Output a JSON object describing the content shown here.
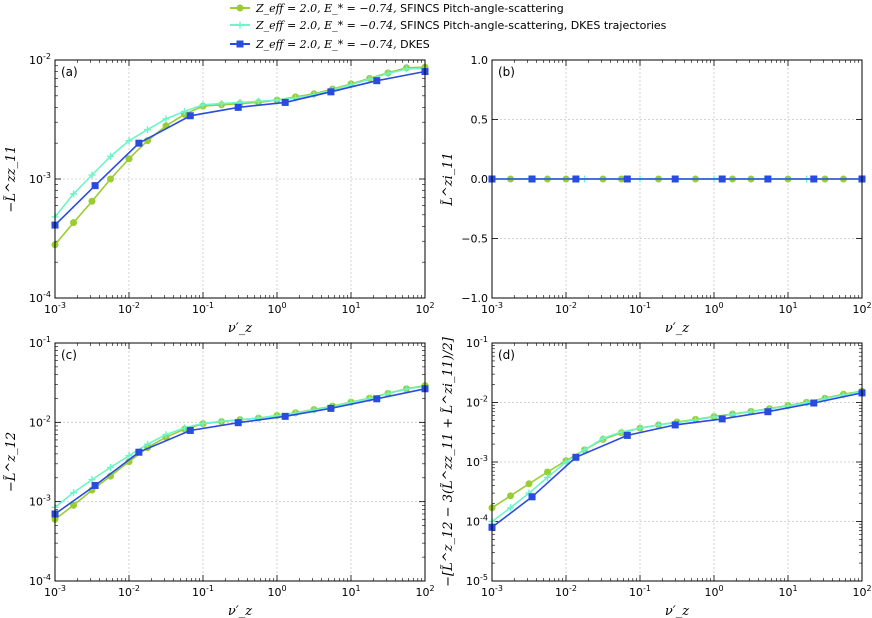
{
  "colors": {
    "sfincs": "#9ACD32",
    "sfincs_dkes": "#6CF5C8",
    "dkes": "#2A4BDF",
    "grid": "#c8c8c8"
  },
  "legend": {
    "entries": [
      {
        "series": "sfincs",
        "math": "Z_eff = 2.0, E_* = −0.74,",
        "text": "SFINCS Pitch-angle-scattering",
        "marker": "circle"
      },
      {
        "series": "sfincs_dkes",
        "math": "Z_eff = 2.0, E_* = −0.74,",
        "text": "SFINCS Pitch-angle-scattering, DKES trajectories",
        "marker": "plus"
      },
      {
        "series": "dkes",
        "math": "Z_eff = 2.0, E_* = −0.74,",
        "text": "DKES",
        "marker": "square"
      }
    ]
  },
  "chart_data": [
    {
      "panel": "(a)",
      "type": "line",
      "xscale": "log",
      "yscale": "log",
      "xlabel": "ν′_z",
      "ylabel": "−L̃^zz_11",
      "xlim": [
        0.001,
        100
      ],
      "ylim": [
        0.0001,
        0.01
      ],
      "xticks": [
        {
          "b": "10",
          "e": "-3"
        },
        {
          "b": "10",
          "e": "-2"
        },
        {
          "b": "10",
          "e": "-1"
        },
        {
          "b": "10",
          "e": "0"
        },
        {
          "b": "10",
          "e": "1"
        },
        {
          "b": "10",
          "e": "2"
        }
      ],
      "yticks": [
        {
          "b": "10",
          "e": "-4"
        },
        {
          "b": "10",
          "e": "-3"
        },
        {
          "b": "10",
          "e": "-2"
        }
      ],
      "series": [
        {
          "key": "sfincs",
          "x": [
            0.001,
            0.00178,
            0.00316,
            0.00562,
            0.01,
            0.0178,
            0.0316,
            0.0562,
            0.1,
            0.178,
            0.316,
            0.562,
            1,
            1.78,
            3.16,
            5.62,
            10,
            17.8,
            31.6,
            56.2,
            100
          ],
          "y": [
            0.00028,
            0.00043,
            0.00065,
            0.001,
            0.00148,
            0.0021,
            0.0028,
            0.0035,
            0.0041,
            0.0042,
            0.0043,
            0.0044,
            0.0046,
            0.0049,
            0.0052,
            0.0057,
            0.0063,
            0.007,
            0.0078,
            0.0086,
            0.0087
          ]
        },
        {
          "key": "sfincs_dkes",
          "x": [
            0.001,
            0.00178,
            0.00316,
            0.00562,
            0.01,
            0.0178,
            0.0316,
            0.0562,
            0.1,
            0.178,
            0.316,
            0.562,
            1,
            1.78,
            3.16,
            5.62,
            10,
            17.8,
            31.6,
            56.2,
            100
          ],
          "y": [
            0.00048,
            0.00075,
            0.00108,
            0.00155,
            0.0021,
            0.0026,
            0.0032,
            0.0037,
            0.0042,
            0.0043,
            0.0044,
            0.0045,
            0.0046,
            0.0048,
            0.0051,
            0.0056,
            0.0062,
            0.0069,
            0.0077,
            0.0084,
            0.0085
          ]
        },
        {
          "key": "dkes",
          "x": [
            0.001,
            0.00348,
            0.0136,
            0.0673,
            0.299,
            1.29,
            5.35,
            22.3,
            100
          ],
          "y": [
            0.00041,
            0.00088,
            0.002,
            0.0034,
            0.004,
            0.0044,
            0.0054,
            0.0067,
            0.008
          ]
        }
      ]
    },
    {
      "panel": "(b)",
      "type": "line",
      "xscale": "log",
      "yscale": "linear",
      "xlabel": "ν′_z",
      "ylabel": "L̃^zi_11",
      "xlim": [
        0.001,
        100
      ],
      "ylim": [
        -1.0,
        1.0
      ],
      "xticks": [
        {
          "b": "10",
          "e": "-3"
        },
        {
          "b": "10",
          "e": "-2"
        },
        {
          "b": "10",
          "e": "-1"
        },
        {
          "b": "10",
          "e": "0"
        },
        {
          "b": "10",
          "e": "1"
        },
        {
          "b": "10",
          "e": "2"
        }
      ],
      "yticks": [
        {
          "v": "−1.0",
          "n": -1.0
        },
        {
          "v": "−0.5",
          "n": -0.5
        },
        {
          "v": "0.0",
          "n": 0.0
        },
        {
          "v": "0.5",
          "n": 0.5
        },
        {
          "v": "1.0",
          "n": 1.0
        }
      ],
      "series": [
        {
          "key": "sfincs",
          "x": [
            0.00178,
            0.00562,
            0.01,
            0.0316,
            0.0562,
            0.178,
            0.562,
            1.78,
            3.16,
            10,
            31.6,
            56.2,
            100
          ],
          "y": [
            0,
            0,
            0,
            0,
            0,
            0,
            0,
            0,
            0,
            0,
            0,
            0,
            0
          ]
        },
        {
          "key": "sfincs_dkes",
          "x": [
            0.001,
            0.00316,
            0.0178,
            0.1,
            0.316,
            1,
            5.62,
            17.8
          ],
          "y": [
            0,
            0,
            0,
            0,
            0,
            0,
            0,
            0
          ]
        },
        {
          "key": "dkes",
          "x": [
            0.001,
            0.00348,
            0.0136,
            0.0673,
            0.299,
            1.29,
            5.35,
            22.3,
            100
          ],
          "y": [
            0,
            0,
            0,
            0,
            0,
            0,
            0,
            0,
            0
          ]
        }
      ]
    },
    {
      "panel": "(c)",
      "type": "line",
      "xscale": "log",
      "yscale": "log",
      "xlabel": "ν′_z",
      "ylabel": "−L̃^z_12",
      "xlim": [
        0.001,
        100
      ],
      "ylim": [
        0.0001,
        0.1
      ],
      "xticks": [
        {
          "b": "10",
          "e": "-3"
        },
        {
          "b": "10",
          "e": "-2"
        },
        {
          "b": "10",
          "e": "-1"
        },
        {
          "b": "10",
          "e": "0"
        },
        {
          "b": "10",
          "e": "1"
        },
        {
          "b": "10",
          "e": "2"
        }
      ],
      "yticks": [
        {
          "b": "10",
          "e": "-4"
        },
        {
          "b": "10",
          "e": "-3"
        },
        {
          "b": "10",
          "e": "-2"
        },
        {
          "b": "10",
          "e": "-1"
        }
      ],
      "series": [
        {
          "key": "sfincs",
          "x": [
            0.001,
            0.00178,
            0.00316,
            0.00562,
            0.01,
            0.0178,
            0.0316,
            0.0562,
            0.1,
            0.178,
            0.316,
            0.562,
            1,
            1.78,
            3.16,
            5.62,
            10,
            17.8,
            31.6,
            56.2,
            100
          ],
          "y": [
            0.0006,
            0.0009,
            0.0014,
            0.0021,
            0.0032,
            0.0048,
            0.0065,
            0.0082,
            0.0096,
            0.0102,
            0.0108,
            0.0113,
            0.0122,
            0.0132,
            0.0145,
            0.016,
            0.018,
            0.0202,
            0.0232,
            0.0265,
            0.029
          ]
        },
        {
          "key": "sfincs_dkes",
          "x": [
            0.001,
            0.00178,
            0.00316,
            0.00562,
            0.01,
            0.0178,
            0.0316,
            0.0562,
            0.1,
            0.178,
            0.316,
            0.562,
            1,
            1.78,
            3.16,
            5.62,
            10,
            17.8,
            31.6,
            56.2,
            100
          ],
          "y": [
            0.00085,
            0.0013,
            0.0019,
            0.0027,
            0.0038,
            0.0053,
            0.007,
            0.0085,
            0.0097,
            0.0103,
            0.0108,
            0.0113,
            0.0121,
            0.013,
            0.0143,
            0.0158,
            0.0178,
            0.02,
            0.023,
            0.0262,
            0.0285
          ]
        },
        {
          "key": "dkes",
          "x": [
            0.001,
            0.00348,
            0.0136,
            0.0673,
            0.299,
            1.29,
            5.35,
            22.3,
            100
          ],
          "y": [
            0.0007,
            0.0016,
            0.0042,
            0.0079,
            0.0099,
            0.0119,
            0.015,
            0.0198,
            0.0265
          ]
        }
      ]
    },
    {
      "panel": "(d)",
      "type": "line",
      "xscale": "log",
      "yscale": "log",
      "xlabel": "ν′_z",
      "ylabel": "−[L̃^z_12 − 3(L̃^zz_11 + L̃^zi_11)/2]",
      "xlim": [
        0.001,
        100
      ],
      "ylim": [
        1e-05,
        0.1
      ],
      "xticks": [
        {
          "b": "10",
          "e": "-3"
        },
        {
          "b": "10",
          "e": "-2"
        },
        {
          "b": "10",
          "e": "-1"
        },
        {
          "b": "10",
          "e": "0"
        },
        {
          "b": "10",
          "e": "1"
        },
        {
          "b": "10",
          "e": "2"
        }
      ],
      "yticks": [
        {
          "b": "10",
          "e": "-5"
        },
        {
          "b": "10",
          "e": "-4"
        },
        {
          "b": "10",
          "e": "-3"
        },
        {
          "b": "10",
          "e": "-2"
        },
        {
          "b": "10",
          "e": "-1"
        }
      ],
      "series": [
        {
          "key": "sfincs",
          "x": [
            0.001,
            0.00178,
            0.00316,
            0.00562,
            0.01,
            0.0178,
            0.0316,
            0.0562,
            0.1,
            0.178,
            0.316,
            0.562,
            1,
            1.78,
            3.16,
            5.62,
            10,
            17.8,
            31.6,
            56.2,
            100
          ],
          "y": [
            0.00017,
            0.00027,
            0.00043,
            0.00068,
            0.00105,
            0.0016,
            0.0024,
            0.0031,
            0.0037,
            0.0042,
            0.0047,
            0.0052,
            0.0058,
            0.0064,
            0.0071,
            0.0079,
            0.0089,
            0.0101,
            0.0118,
            0.0138,
            0.0155
          ]
        },
        {
          "key": "sfincs_dkes",
          "x": [
            0.001,
            0.00178,
            0.00316,
            0.00562,
            0.01,
            0.0178,
            0.0316,
            0.0562,
            0.1,
            0.178,
            0.316,
            0.562,
            1,
            1.78,
            3.16,
            5.62,
            10,
            17.8,
            31.6,
            56.2,
            100
          ],
          "y": [
            0.0001,
            0.00017,
            0.0003,
            0.00055,
            0.001,
            0.0016,
            0.0025,
            0.0032,
            0.0037,
            0.0042,
            0.0046,
            0.0051,
            0.0057,
            0.0063,
            0.007,
            0.0078,
            0.0087,
            0.0099,
            0.0115,
            0.0134,
            0.0152
          ]
        },
        {
          "key": "dkes",
          "x": [
            0.001,
            0.00348,
            0.0136,
            0.0673,
            0.299,
            1.29,
            5.35,
            22.3,
            100
          ],
          "y": [
            8e-05,
            0.00026,
            0.0012,
            0.0028,
            0.0042,
            0.0053,
            0.007,
            0.0098,
            0.0145
          ]
        }
      ]
    }
  ]
}
